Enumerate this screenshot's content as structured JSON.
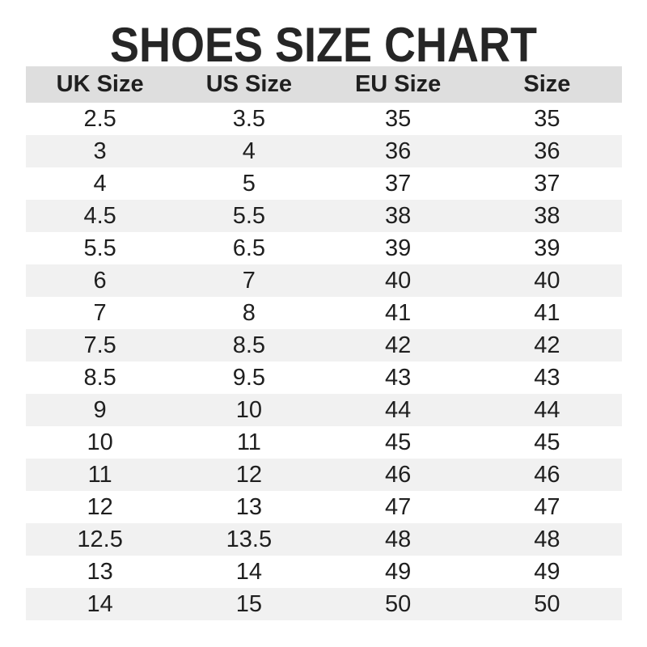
{
  "title": "SHOES SIZE CHART",
  "colors": {
    "background": "#ffffff",
    "title_color": "#262626",
    "text_color": "#1f1f1f",
    "header_bg": "#dedede",
    "row_alt_bg": "#f1f1f1"
  },
  "chart_data": {
    "type": "table",
    "title": "SHOES SIZE CHART",
    "columns": [
      "UK Size",
      "US Size",
      "EU Size",
      "Size"
    ],
    "rows": [
      [
        "2.5",
        "3.5",
        "35",
        "35"
      ],
      [
        "3",
        "4",
        "36",
        "36"
      ],
      [
        "4",
        "5",
        "37",
        "37"
      ],
      [
        "4.5",
        "5.5",
        "38",
        "38"
      ],
      [
        "5.5",
        "6.5",
        "39",
        "39"
      ],
      [
        "6",
        "7",
        "40",
        "40"
      ],
      [
        "7",
        "8",
        "41",
        "41"
      ],
      [
        "7.5",
        "8.5",
        "42",
        "42"
      ],
      [
        "8.5",
        "9.5",
        "43",
        "43"
      ],
      [
        "9",
        "10",
        "44",
        "44"
      ],
      [
        "10",
        "11",
        "45",
        "45"
      ],
      [
        "11",
        "12",
        "46",
        "46"
      ],
      [
        "12",
        "13",
        "47",
        "47"
      ],
      [
        "12.5",
        "13.5",
        "48",
        "48"
      ],
      [
        "13",
        "14",
        "49",
        "49"
      ],
      [
        "14",
        "15",
        "50",
        "50"
      ]
    ],
    "layout": {
      "striped": true,
      "stripe_pattern": "even-rows-gray",
      "header_style": "gray-filled-bold",
      "alignment": "center"
    }
  }
}
